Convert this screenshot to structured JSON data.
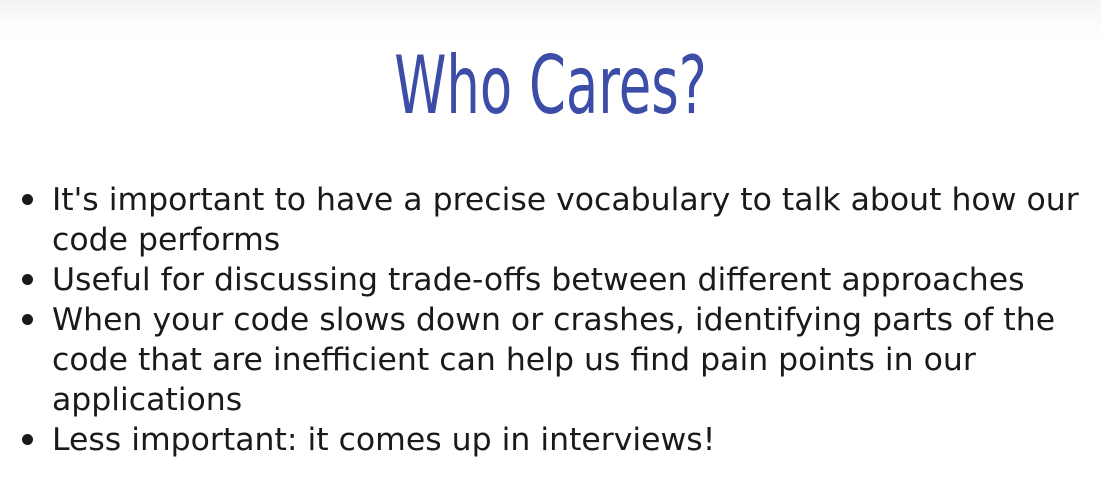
{
  "slide": {
    "title": "Who Cares?",
    "colors": {
      "title": "#3c4da8",
      "text": "#1a1a1a",
      "background": "#ffffff"
    },
    "bullets": [
      "It's important to have a precise vocabulary to talk about how our code performs",
      "Useful for discussing trade-offs between different approaches",
      "When your code slows down or crashes, identifying parts of the code that are inefficient can help us find pain points in our applications",
      "Less important: it comes up in interviews!"
    ]
  }
}
